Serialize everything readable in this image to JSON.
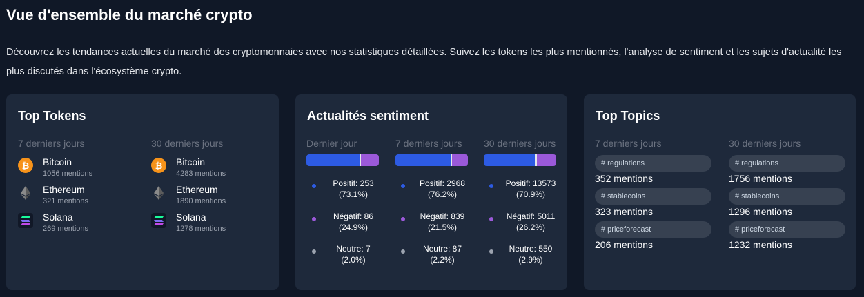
{
  "page": {
    "title": "Vue d'ensemble du marché crypto",
    "intro": "Découvrez les tendances actuelles du marché des cryptomonnaies avec nos statistiques détaillées. Suivez les tokens les plus mentionnés, l'analyse de sentiment et les sujets d'actualité les plus discutés dans l'écosystème crypto."
  },
  "colors": {
    "background": "#101827",
    "card": "#1e293b",
    "positive": "#2d5be3",
    "negative": "#9b59d9",
    "neutral": "#e5e7eb",
    "pill": "#374151"
  },
  "top_tokens": {
    "title": "Top Tokens",
    "columns": [
      {
        "period": "7 derniers jours",
        "tokens": [
          {
            "name": "Bitcoin",
            "mentions": "1056 mentions",
            "icon": "bitcoin-icon"
          },
          {
            "name": "Ethereum",
            "mentions": "321 mentions",
            "icon": "ethereum-icon"
          },
          {
            "name": "Solana",
            "mentions": "269 mentions",
            "icon": "solana-icon"
          }
        ]
      },
      {
        "period": "30 derniers jours",
        "tokens": [
          {
            "name": "Bitcoin",
            "mentions": "4283 mentions",
            "icon": "bitcoin-icon"
          },
          {
            "name": "Ethereum",
            "mentions": "1890 mentions",
            "icon": "ethereum-icon"
          },
          {
            "name": "Solana",
            "mentions": "1278 mentions",
            "icon": "solana-icon"
          }
        ]
      }
    ]
  },
  "sentiment": {
    "title": "Actualités sentiment",
    "columns": [
      {
        "period": "Dernier jour",
        "positive_pct": 73.1,
        "negative_pct": 24.9,
        "neutral_pct": 2.0,
        "positive_line1": "Positif: 253",
        "positive_line2": "(73.1%)",
        "negative_line1": "Négatif: 86",
        "negative_line2": "(24.9%)",
        "neutral_line1": "Neutre: 7",
        "neutral_line2": "(2.0%)"
      },
      {
        "period": "7 derniers jours",
        "positive_pct": 76.2,
        "negative_pct": 21.5,
        "neutral_pct": 2.2,
        "positive_line1": "Positif: 2968",
        "positive_line2": "(76.2%)",
        "negative_line1": "Négatif: 839",
        "negative_line2": "(21.5%)",
        "neutral_line1": "Neutre: 87",
        "neutral_line2": "(2.2%)"
      },
      {
        "period": "30 derniers jours",
        "positive_pct": 70.9,
        "negative_pct": 26.2,
        "neutral_pct": 2.9,
        "positive_line1": "Positif: 13573",
        "positive_line2": "(70.9%)",
        "negative_line1": "Négatif: 5011",
        "negative_line2": "(26.2%)",
        "neutral_line1": "Neutre: 550",
        "neutral_line2": "(2.9%)"
      }
    ]
  },
  "top_topics": {
    "title": "Top Topics",
    "columns": [
      {
        "period": "7 derniers jours",
        "topics": [
          {
            "tag": "# regulations",
            "mentions": "352 mentions"
          },
          {
            "tag": "# stablecoins",
            "mentions": "323 mentions"
          },
          {
            "tag": "# priceforecast",
            "mentions": "206 mentions"
          }
        ]
      },
      {
        "period": "30 derniers jours",
        "topics": [
          {
            "tag": "# regulations",
            "mentions": "1756 mentions"
          },
          {
            "tag": "# stablecoins",
            "mentions": "1296 mentions"
          },
          {
            "tag": "# priceforecast",
            "mentions": "1232 mentions"
          }
        ]
      }
    ]
  }
}
